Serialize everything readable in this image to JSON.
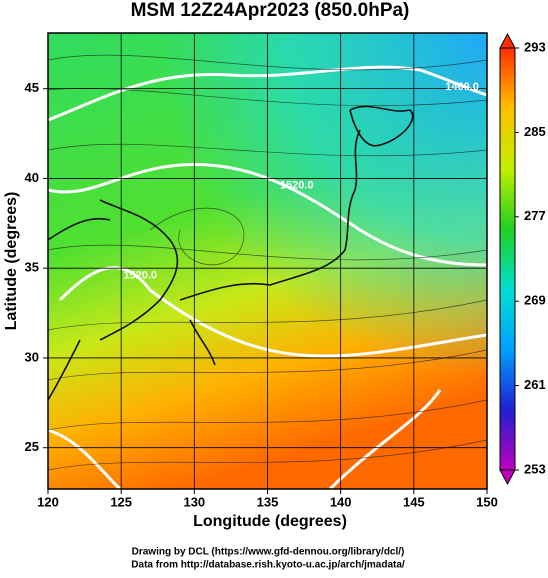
{
  "chart_data": {
    "type": "map",
    "title": "MSM 12Z24Apr2023 (850.0hPa)",
    "x_label": "Longitude (degrees)",
    "y_label": "Latitude  (degrees)",
    "xlim": [
      120,
      150
    ],
    "ylim": [
      22.7,
      48.1
    ],
    "xticks": [
      120,
      125,
      130,
      135,
      140,
      145,
      150
    ],
    "yticks": [
      25,
      30,
      35,
      40,
      45
    ],
    "grid": true,
    "annotations": [
      {
        "text": "1460.0",
        "x": 148.3,
        "y": 45.1
      },
      {
        "text": "1520.0",
        "x": 137.0,
        "y": 39.6
      },
      {
        "text": "1520.0",
        "x": 126.3,
        "y": 34.6
      }
    ],
    "colorbar": {
      "lim": [
        253,
        293
      ],
      "ticks": [
        253,
        261,
        269,
        277,
        285,
        293
      ],
      "colors": [
        "#c000c0",
        "#2020d0",
        "#00a0ff",
        "#00e0d0",
        "#20d020",
        "#c0f000",
        "#ffc000",
        "#ff3000"
      ]
    },
    "footer": [
      "Drawing by DCL (https://www.gfd-dennou.org/library/dcl/)",
      "Data from http://database.rish.kyoto-u.ac.jp/arch/jmadata/"
    ]
  }
}
